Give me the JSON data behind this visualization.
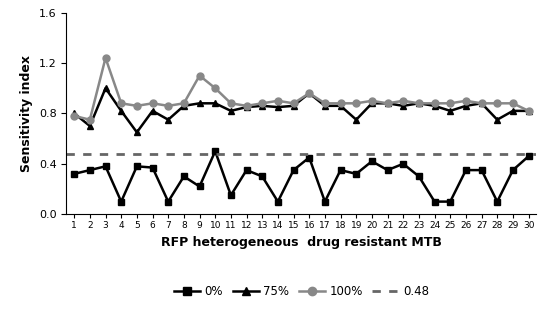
{
  "x": [
    1,
    2,
    3,
    4,
    5,
    6,
    7,
    8,
    9,
    10,
    11,
    12,
    13,
    14,
    15,
    16,
    17,
    18,
    19,
    20,
    21,
    22,
    23,
    24,
    25,
    26,
    27,
    28,
    29,
    30
  ],
  "y_0pct": [
    0.32,
    0.35,
    0.38,
    0.1,
    0.38,
    0.37,
    0.1,
    0.3,
    0.22,
    0.5,
    0.15,
    0.35,
    0.3,
    0.1,
    0.35,
    0.45,
    0.1,
    0.35,
    0.32,
    0.42,
    0.35,
    0.4,
    0.3,
    0.1,
    0.1,
    0.35,
    0.35,
    0.1,
    0.35,
    0.46
  ],
  "y_75pct": [
    0.8,
    0.7,
    1.0,
    0.82,
    0.65,
    0.82,
    0.75,
    0.86,
    0.88,
    0.88,
    0.82,
    0.85,
    0.86,
    0.85,
    0.86,
    0.96,
    0.86,
    0.86,
    0.75,
    0.88,
    0.88,
    0.86,
    0.88,
    0.86,
    0.82,
    0.86,
    0.88,
    0.75,
    0.82,
    0.82
  ],
  "y_100pct": [
    0.78,
    0.75,
    1.24,
    0.88,
    0.86,
    0.88,
    0.86,
    0.88,
    1.1,
    1.0,
    0.88,
    0.86,
    0.88,
    0.9,
    0.88,
    0.96,
    0.88,
    0.88,
    0.88,
    0.9,
    0.88,
    0.9,
    0.88,
    0.88,
    0.88,
    0.9,
    0.88,
    0.88,
    0.88,
    0.82
  ],
  "hline_y": 0.48,
  "ylim": [
    0,
    1.6
  ],
  "yticks": [
    0,
    0.4,
    0.8,
    1.2,
    1.6
  ],
  "xlabel": "RFP heterogeneous  drug resistant MTB",
  "ylabel": "Sensitivity index",
  "color_0pct": "#000000",
  "color_75pct": "#000000",
  "color_100pct": "#888888",
  "hline_color": "#666666",
  "legend_labels": [
    "0%",
    "75%",
    "100%",
    "0.48"
  ],
  "marker_0pct": "s",
  "marker_75pct": "^",
  "marker_100pct": "o",
  "linewidth": 1.8,
  "markersize": 5,
  "fig_width": 5.53,
  "fig_height": 3.15,
  "dpi": 100
}
